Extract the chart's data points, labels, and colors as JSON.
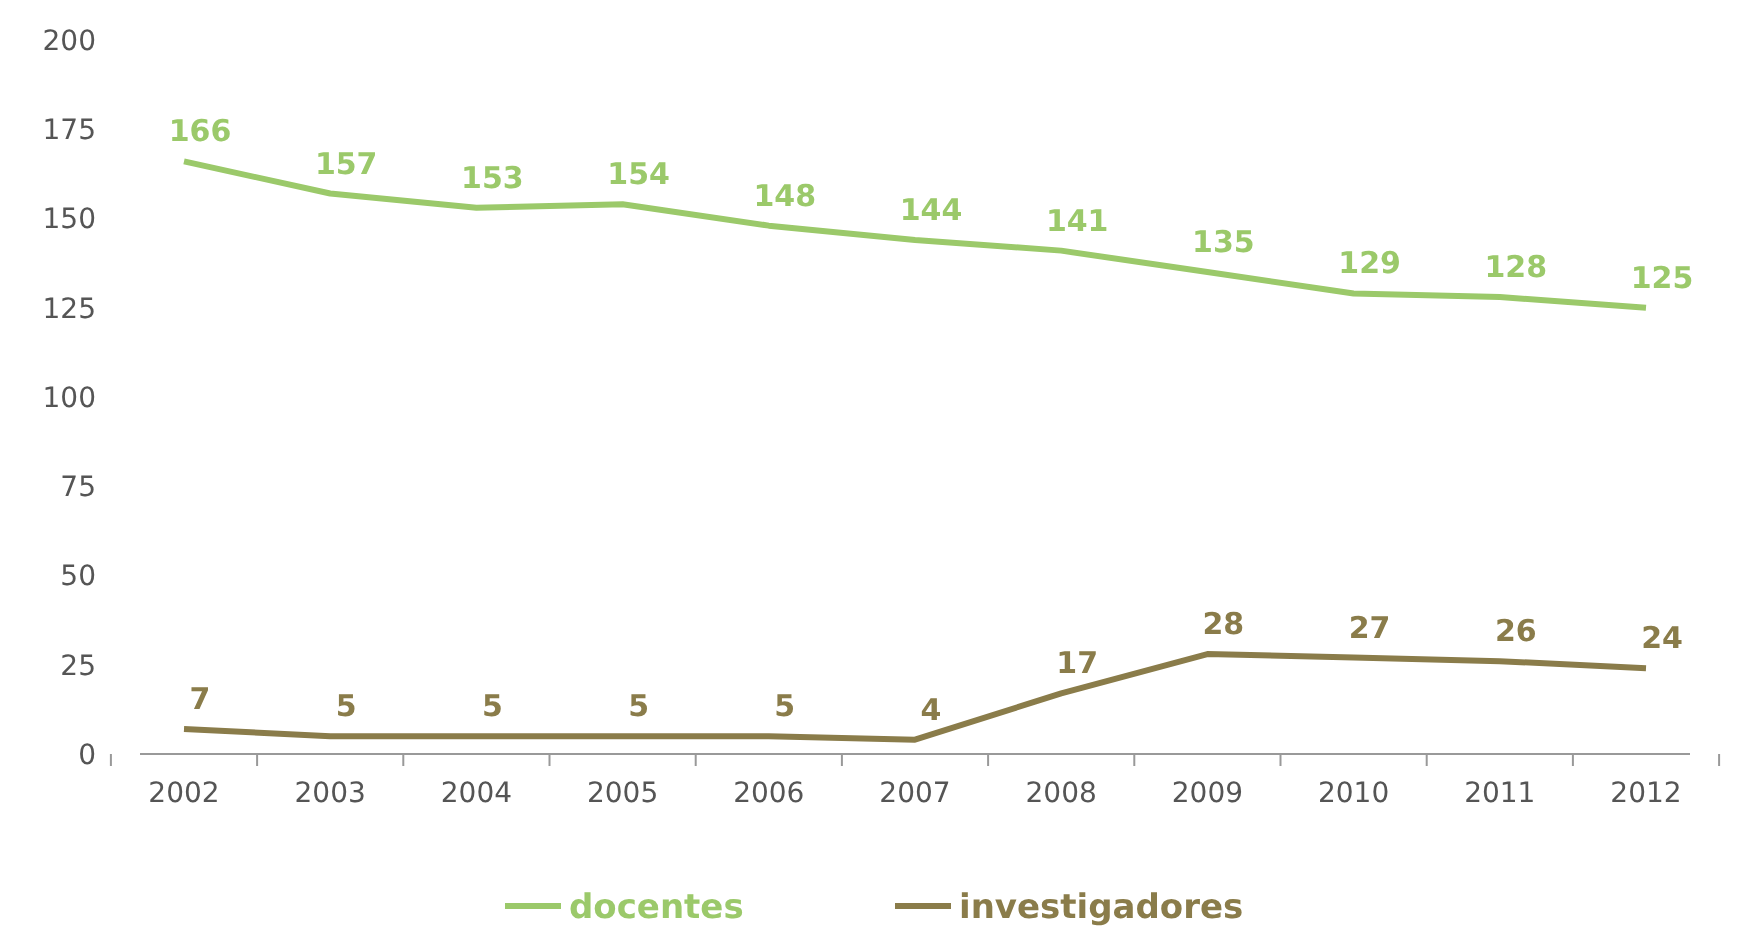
{
  "chart_data": {
    "type": "line",
    "categories": [
      "2002",
      "2003",
      "2004",
      "2005",
      "2006",
      "2007",
      "2008",
      "2009",
      "2010",
      "2011",
      "2012"
    ],
    "series": [
      {
        "name": "docentes",
        "color": "#9bc96a",
        "values": [
          166,
          157,
          153,
          154,
          148,
          144,
          141,
          135,
          129,
          128,
          125
        ]
      },
      {
        "name": "investigadores",
        "color": "#8a7c4a",
        "values": [
          7,
          5,
          5,
          5,
          5,
          4,
          17,
          28,
          27,
          26,
          24
        ]
      }
    ],
    "ylim": [
      0,
      200
    ],
    "yticks": [
      0,
      25,
      50,
      75,
      100,
      125,
      150,
      175,
      200
    ],
    "grid": false,
    "legend": "bottom",
    "data_labels": true,
    "marker": "none",
    "line_style": "solid"
  }
}
